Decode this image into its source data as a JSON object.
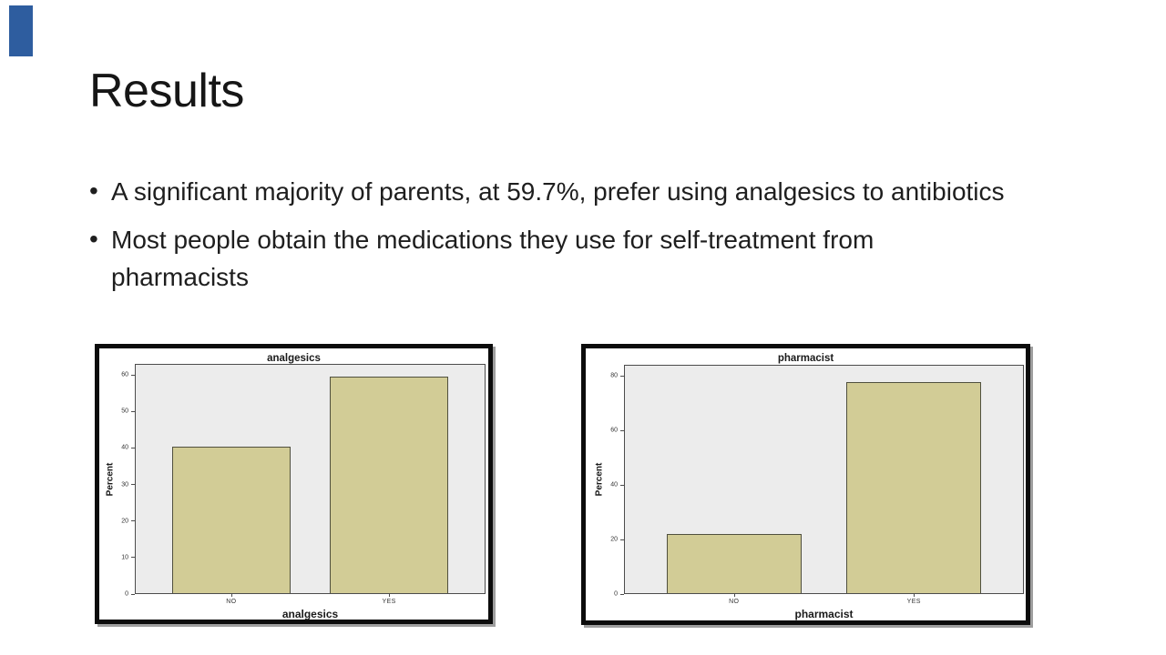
{
  "slide": {
    "title": "Results",
    "bullets": [
      "A significant majority of parents, at 59.7%, prefer using analgesics to antibiotics",
      "Most people obtain the medications they use for self-treatment from pharmacists"
    ],
    "accent_color": "#2e5d9f",
    "background_color": "#ffffff"
  },
  "chart_data": [
    {
      "type": "bar",
      "title": "analgesics",
      "xlabel": "analgesics",
      "ylabel": "Percent",
      "categories": [
        "NO",
        "YES"
      ],
      "values": [
        40.3,
        59.7
      ],
      "yticks": [
        0,
        10,
        20,
        30,
        40,
        50,
        60
      ],
      "ylim": [
        0,
        63
      ],
      "grid": false,
      "legend": "none",
      "bar_color": "#d2cc96",
      "bar_border_color": "#50503e",
      "plot_bg": "#ececec",
      "frame_color": "#0c0c0c"
    },
    {
      "type": "bar",
      "title": "pharmacist",
      "xlabel": "pharmacist",
      "ylabel": "Percent",
      "categories": [
        "NO",
        "YES"
      ],
      "values": [
        22,
        78
      ],
      "yticks": [
        0,
        20,
        40,
        60,
        80
      ],
      "ylim": [
        0,
        84
      ],
      "grid": false,
      "legend": "none",
      "bar_color": "#d2cc96",
      "bar_border_color": "#50503e",
      "plot_bg": "#ececec",
      "frame_color": "#0c0c0c"
    }
  ]
}
